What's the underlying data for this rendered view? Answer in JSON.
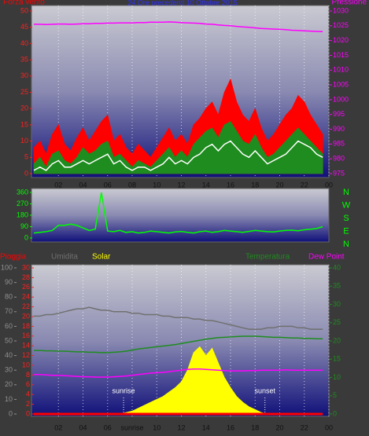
{
  "chart_data": [
    {
      "type": "line",
      "title": "24 Ore precedenti 10 Ottobre 2015",
      "x": [
        0,
        0.5,
        1,
        1.5,
        2,
        2.5,
        3,
        3.5,
        4,
        4.5,
        5,
        5.5,
        6,
        6.5,
        7,
        7.5,
        8,
        8.5,
        9,
        9.5,
        10,
        10.5,
        11,
        11.5,
        12,
        12.5,
        13,
        13.5,
        14,
        14.5,
        15,
        15.5,
        16,
        16.5,
        17,
        17.5,
        18,
        18.5,
        19,
        19.5,
        20,
        20.5,
        21,
        21.5,
        22,
        22.5,
        23,
        23.5
      ],
      "xticks": [
        {
          "value": 2,
          "label": "02"
        },
        {
          "value": 4,
          "label": "04"
        },
        {
          "value": 6,
          "label": "06"
        },
        {
          "value": 8,
          "label": "08"
        },
        10,
        12,
        14,
        16,
        18,
        20,
        22,
        {
          "value": 24,
          "label": "00"
        }
      ],
      "ylim": [
        0,
        50
      ],
      "yticks": [
        0,
        5,
        10,
        15,
        20,
        25,
        30,
        35,
        40,
        45,
        50
      ],
      "ycolor": "#ff2020",
      "y2lim": [
        975,
        1030
      ],
      "y2ticks": [
        975,
        980,
        985,
        990,
        995,
        1000,
        1005,
        1010,
        1015,
        1020,
        1025,
        1030
      ],
      "y2color": "#ff00ff",
      "grid": true,
      "series": [
        {
          "name": "Forza vento",
          "color": "#ff0000",
          "style": "area",
          "values": [
            8,
            10,
            6,
            12,
            15,
            9,
            7,
            11,
            14,
            10,
            13,
            16,
            18,
            10,
            12,
            8,
            6,
            9,
            7,
            5,
            8,
            11,
            14,
            10,
            12,
            9,
            15,
            17,
            20,
            22,
            18,
            25,
            29,
            22,
            18,
            16,
            20,
            14,
            10,
            12,
            15,
            18,
            20,
            24,
            22,
            18,
            15,
            12
          ]
        },
        {
          "color": "#1e8c1e",
          "style": "area",
          "values": [
            3,
            5,
            2,
            6,
            7,
            4,
            3,
            5,
            8,
            6,
            7,
            9,
            10,
            5,
            6,
            4,
            2,
            4,
            3,
            2,
            4,
            6,
            8,
            5,
            7,
            5,
            9,
            11,
            13,
            14,
            11,
            15,
            16,
            13,
            10,
            9,
            12,
            8,
            5,
            6,
            8,
            10,
            12,
            14,
            12,
            10,
            8,
            6
          ]
        },
        {
          "color": "#ffffff",
          "style": "line",
          "values": [
            1,
            2,
            1,
            3,
            4,
            2,
            2,
            3,
            4,
            3,
            4,
            5,
            6,
            3,
            4,
            2,
            1,
            2,
            2,
            1,
            2,
            3,
            5,
            3,
            4,
            3,
            5,
            6,
            8,
            9,
            7,
            9,
            10,
            8,
            6,
            5,
            7,
            5,
            3,
            4,
            5,
            6,
            8,
            10,
            9,
            8,
            6,
            5
          ]
        },
        {
          "name": "Pressione",
          "color": "#ff00ff",
          "style": "line",
          "axis": "y2",
          "values": [
            1025.5,
            1025.5,
            1025.4,
            1025.5,
            1025.6,
            1025.6,
            1025.5,
            1025.6,
            1025.7,
            1025.7,
            1025.8,
            1025.8,
            1025.9,
            1025.9,
            1026,
            1026,
            1026,
            1026.1,
            1026.1,
            1026.2,
            1026.2,
            1026.2,
            1026.3,
            1026.2,
            1026.1,
            1026,
            1025.9,
            1025.8,
            1025.6,
            1025.5,
            1025.3,
            1025.1,
            1025,
            1024.8,
            1024.6,
            1024.5,
            1024.3,
            1024.1,
            1024,
            1023.9,
            1023.8,
            1023.7,
            1023.5,
            1023.4,
            1023.3,
            1023.2,
            1023.1,
            1023
          ]
        }
      ]
    },
    {
      "type": "line",
      "x": [
        0,
        0.5,
        1,
        1.5,
        2,
        2.5,
        3,
        3.5,
        4,
        4.5,
        5,
        5.5,
        6,
        6.5,
        7,
        7.5,
        8,
        8.5,
        9,
        9.5,
        10,
        10.5,
        11,
        11.5,
        12,
        12.5,
        13,
        13.5,
        14,
        14.5,
        15,
        15.5,
        16,
        16.5,
        17,
        17.5,
        18,
        18.5,
        19,
        19.5,
        20,
        20.5,
        21,
        21.5,
        22,
        22.5,
        23,
        23.5
      ],
      "ylim": [
        0,
        360
      ],
      "yticks": [
        0,
        90,
        180,
        270,
        360
      ],
      "ycolor": "#00ff00",
      "compass": [
        "N",
        "W",
        "S",
        "E",
        "N"
      ],
      "compass_color": "#00ff00",
      "series": [
        {
          "color": "#00ff00",
          "style": "line",
          "values": [
            40,
            45,
            50,
            60,
            100,
            100,
            110,
            100,
            80,
            60,
            70,
            360,
            55,
            50,
            60,
            45,
            50,
            40,
            45,
            55,
            50,
            45,
            40,
            48,
            52,
            45,
            40,
            50,
            55,
            45,
            50,
            60,
            55,
            50,
            45,
            52,
            60,
            55,
            50,
            48,
            55,
            60,
            62,
            58,
            65,
            70,
            75,
            90
          ]
        }
      ]
    },
    {
      "type": "line",
      "x": [
        0,
        0.5,
        1,
        1.5,
        2,
        2.5,
        3,
        3.5,
        4,
        4.5,
        5,
        5.5,
        6,
        6.5,
        7,
        7.5,
        8,
        8.5,
        9,
        9.5,
        10,
        10.5,
        11,
        11.5,
        12,
        12.5,
        13,
        13.5,
        14,
        14.5,
        15,
        15.5,
        16,
        16.5,
        17,
        17.5,
        18,
        18.5,
        19,
        19.5,
        20,
        20.5,
        21,
        21.5,
        22,
        22.5,
        23,
        23.5
      ],
      "xticks": [
        {
          "value": 2,
          "label": "02"
        },
        {
          "value": 4,
          "label": "04"
        },
        {
          "value": 6,
          "label": "06"
        },
        {
          "value": 8,
          "label": "sunrise"
        },
        10,
        12,
        14,
        16,
        18,
        20,
        22,
        {
          "value": 24,
          "label": "00"
        }
      ],
      "ylim": [
        0,
        100
      ],
      "yticks": [
        0,
        10,
        20,
        30,
        40,
        50,
        60,
        70,
        80,
        90,
        100
      ],
      "ycolor": "#909090",
      "y2lim": [
        0,
        30
      ],
      "y2ticks": [
        0,
        2,
        4,
        6,
        8,
        10,
        12,
        14,
        16,
        18,
        20,
        22,
        24,
        26,
        28,
        30
      ],
      "y2color": "#ff2020",
      "y3lim": [
        0,
        40
      ],
      "y3ticks": [
        0,
        5,
        10,
        15,
        20,
        25,
        30,
        35,
        40
      ],
      "y3color": "#1e8c1e",
      "grid": true,
      "annotations": [
        {
          "text": "sunrise",
          "x": 7.3
        },
        {
          "text": "sunset",
          "x": 18.8
        }
      ],
      "series": [
        {
          "name": "Solar",
          "color": "#ffff00",
          "style": "area",
          "values": [
            0,
            0,
            0,
            0,
            0,
            0,
            0,
            0,
            0,
            0,
            0,
            0,
            0,
            0,
            0,
            1,
            2,
            4,
            6,
            8,
            10,
            12,
            15,
            18,
            22,
            30,
            42,
            46,
            40,
            45,
            35,
            25,
            18,
            12,
            8,
            5,
            3,
            1,
            0,
            0,
            0,
            0,
            0,
            0,
            0,
            0,
            0,
            0
          ]
        },
        {
          "name": "Umidita",
          "color": "#707070",
          "style": "line",
          "values": [
            67,
            67,
            68,
            68,
            69,
            70,
            71,
            72,
            72,
            73,
            72,
            71,
            71,
            70,
            70,
            70,
            69,
            69,
            68,
            68,
            68,
            67,
            67,
            66,
            66,
            66,
            65,
            65,
            64,
            64,
            63,
            62,
            61,
            60,
            59,
            58,
            58,
            58,
            59,
            59,
            60,
            60,
            60,
            59,
            59,
            58,
            58,
            58
          ]
        },
        {
          "name": "Temperatura",
          "color": "#1e8c1e",
          "style": "line",
          "axis": "y3",
          "values": [
            17.4,
            17.4,
            17.3,
            17.3,
            17.2,
            17.2,
            17.1,
            17,
            17,
            16.9,
            16.9,
            16.8,
            16.8,
            16.9,
            17,
            17.2,
            17.5,
            17.8,
            18,
            18.2,
            18.4,
            18.6,
            18.8,
            19,
            19.3,
            19.6,
            19.9,
            20.2,
            20.5,
            20.7,
            20.9,
            21,
            21.1,
            21.2,
            21.3,
            21.3,
            21.3,
            21.2,
            21.1,
            21,
            21,
            20.9,
            20.8,
            20.8,
            20.7,
            20.7,
            20.6,
            20.6
          ]
        },
        {
          "name": "Dew Point",
          "color": "#ff00ff",
          "style": "line",
          "axis": "y3",
          "values": [
            10.8,
            10.8,
            10.7,
            10.6,
            10.6,
            10.5,
            10.4,
            10.3,
            10.2,
            10.2,
            10.1,
            10.1,
            10.1,
            10.2,
            10.3,
            10.4,
            10.6,
            10.8,
            11,
            11.2,
            11.3,
            11.4,
            11.6,
            11.8,
            12,
            12.2,
            12.3,
            12.3,
            12.2,
            12.1,
            12,
            11.9,
            11.8,
            11.8,
            11.8,
            11.9,
            11.9,
            12,
            12,
            12,
            12,
            12.1,
            12,
            12,
            12,
            12,
            12,
            12
          ]
        },
        {
          "name": "Pioggia",
          "color": "#ff0000",
          "style": "line",
          "axis": "y2",
          "values": [
            0,
            0,
            0,
            0,
            0,
            0,
            0,
            0,
            0,
            0,
            0,
            0,
            0,
            0,
            0,
            0,
            0,
            0,
            0,
            0,
            0,
            0,
            0,
            0,
            0,
            0,
            0,
            0,
            0,
            0,
            0,
            0,
            0,
            0,
            0,
            0,
            0,
            0,
            0,
            0,
            0,
            0,
            0,
            0,
            0,
            0,
            0,
            0
          ]
        }
      ]
    }
  ]
}
